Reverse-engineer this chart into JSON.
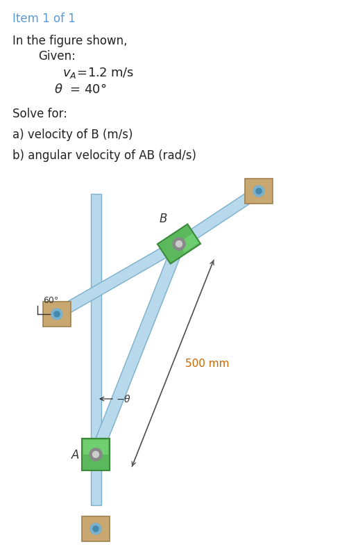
{
  "bg_color": "#ffffff",
  "title_text": "Item 1 of 1",
  "title_color": "#5b9bd5",
  "link_color": "#b8d8eb",
  "link_edge_color": "#7ab0cc",
  "slider_green": "#5cb85c",
  "slider_green_light": "#7de07d",
  "slider_green_edge": "#3a8a3a",
  "wall_color": "#c8a870",
  "wall_edge": "#a08050",
  "pin_outer": "#8a8a8a",
  "pin_inner": "#cccccc",
  "dim_color": "#cc6600",
  "dim_text": "500 mm",
  "angle_60_text": "60°",
  "label_A": "A",
  "label_B": "B"
}
